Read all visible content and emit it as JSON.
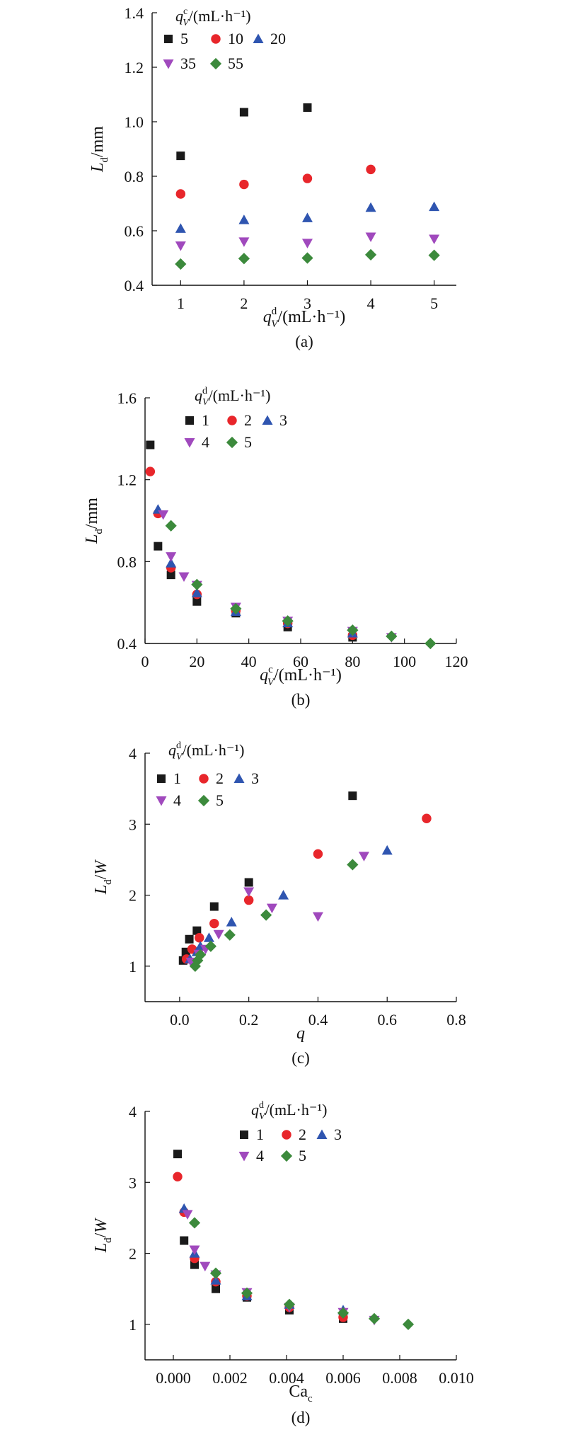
{
  "colors": {
    "black": "#1a1a1a",
    "red": "#e8262b",
    "blue": "#2f55b0",
    "purple": "#a049bd",
    "green": "#3c8a3c"
  },
  "chart_data": [
    {
      "type": "scatter",
      "panel_label": "(a)",
      "xlabel_main": "q",
      "xlabel_sub": "V",
      "xlabel_sup": "d",
      "xlabel_unit": "/(mL·h⁻¹)",
      "ylabel_main": "L",
      "ylabel_sub": "d",
      "ylabel_unit": "/mm",
      "xlim": [
        0.55,
        5.35
      ],
      "ylim": [
        0.4,
        1.4
      ],
      "xticks": [
        1,
        2,
        3,
        4,
        5
      ],
      "yticks": [
        0.4,
        0.6,
        0.8,
        1.0,
        1.2,
        1.4
      ],
      "ytick_decimals": 1,
      "xtick_decimals": 0,
      "legend_title_main": "q",
      "legend_title_sub": "V",
      "legend_title_sup": "c",
      "legend_title_unit": "/(mL·h⁻¹)",
      "series": [
        {
          "name": "5",
          "marker": "square",
          "color": "black",
          "x": [
            1,
            2,
            3
          ],
          "y": [
            0.875,
            1.035,
            1.052
          ]
        },
        {
          "name": "10",
          "marker": "circle",
          "color": "red",
          "x": [
            1,
            2,
            3,
            4
          ],
          "y": [
            0.735,
            0.77,
            0.792,
            0.825
          ]
        },
        {
          "name": "20",
          "marker": "triangle-up",
          "color": "blue",
          "x": [
            1,
            2,
            3,
            4,
            5
          ],
          "y": [
            0.608,
            0.64,
            0.647,
            0.685,
            0.688
          ]
        },
        {
          "name": "35",
          "marker": "triangle-down",
          "color": "purple",
          "x": [
            1,
            2,
            3,
            4,
            5
          ],
          "y": [
            0.545,
            0.56,
            0.555,
            0.578,
            0.57
          ]
        },
        {
          "name": "55",
          "marker": "diamond",
          "color": "green",
          "x": [
            1,
            2,
            3,
            4,
            5
          ],
          "y": [
            0.478,
            0.498,
            0.5,
            0.512,
            0.51
          ]
        }
      ]
    },
    {
      "type": "scatter",
      "panel_label": "(b)",
      "xlabel_main": "q",
      "xlabel_sub": "V",
      "xlabel_sup": "c",
      "xlabel_unit": "/(mL·h⁻¹)",
      "ylabel_main": "L",
      "ylabel_sub": "d",
      "ylabel_unit": "/mm",
      "xlim": [
        0,
        120
      ],
      "ylim": [
        0.4,
        1.6
      ],
      "xticks": [
        0,
        20,
        40,
        60,
        80,
        100,
        120
      ],
      "yticks": [
        0.4,
        0.8,
        1.2,
        1.6
      ],
      "ytick_decimals": 1,
      "xtick_decimals": 0,
      "legend_title_main": "q",
      "legend_title_sub": "V",
      "legend_title_sup": "d",
      "legend_title_unit": "/(mL·h⁻¹)",
      "series": [
        {
          "name": "1",
          "marker": "square",
          "color": "black",
          "x": [
            2,
            5,
            10,
            20,
            35,
            55,
            80
          ],
          "y": [
            1.37,
            0.875,
            0.735,
            0.605,
            0.548,
            0.48,
            0.43
          ]
        },
        {
          "name": "2",
          "marker": "circle",
          "color": "red",
          "x": [
            2,
            5,
            10,
            20,
            35,
            55,
            80
          ],
          "y": [
            1.24,
            1.035,
            0.77,
            0.64,
            0.56,
            0.498,
            0.44
          ]
        },
        {
          "name": "3",
          "marker": "triangle-up",
          "color": "blue",
          "x": [
            5,
            10,
            20,
            35,
            55,
            80
          ],
          "y": [
            1.055,
            0.792,
            0.647,
            0.555,
            0.5,
            0.45
          ]
        },
        {
          "name": "4",
          "marker": "triangle-down",
          "color": "purple",
          "x": [
            7,
            10,
            15,
            20,
            35,
            55,
            80,
            95
          ],
          "y": [
            1.03,
            0.825,
            0.727,
            0.685,
            0.578,
            0.51,
            0.46,
            0.43
          ]
        },
        {
          "name": "5",
          "marker": "diamond",
          "color": "green",
          "x": [
            10,
            20,
            35,
            55,
            80,
            95,
            110
          ],
          "y": [
            0.975,
            0.688,
            0.57,
            0.51,
            0.465,
            0.435,
            0.4
          ]
        }
      ]
    },
    {
      "type": "scatter",
      "panel_label": "(c)",
      "xlabel_main": "q",
      "xlabel_sub": "",
      "xlabel_sup": "",
      "xlabel_unit": "",
      "ylabel_main": "L",
      "ylabel_sub": "d",
      "ylabel_unit": "/W",
      "xlim": [
        -0.1,
        0.8
      ],
      "ylim": [
        0.5,
        4
      ],
      "xticks": [
        0,
        0.2,
        0.4,
        0.6,
        0.8
      ],
      "yticks": [
        1,
        2,
        3,
        4
      ],
      "ytick_decimals": 0,
      "xtick_decimals": 1,
      "legend_title_main": "q",
      "legend_title_sub": "V",
      "legend_title_sup": "d",
      "legend_title_unit": "/(mL·h⁻¹)",
      "series": [
        {
          "name": "1",
          "marker": "square",
          "color": "black",
          "x": [
            0.01,
            0.018,
            0.028,
            0.05,
            0.1,
            0.2,
            0.5
          ],
          "y": [
            1.08,
            1.2,
            1.38,
            1.5,
            1.84,
            2.18,
            3.4
          ]
        },
        {
          "name": "2",
          "marker": "circle",
          "color": "red",
          "x": [
            0.02,
            0.036,
            0.057,
            0.1,
            0.2,
            0.4,
            0.714
          ],
          "y": [
            1.1,
            1.24,
            1.4,
            1.6,
            1.93,
            2.58,
            3.08
          ]
        },
        {
          "name": "3",
          "marker": "triangle-up",
          "color": "blue",
          "x": [
            0.03,
            0.05,
            0.06,
            0.085,
            0.15,
            0.3,
            0.6
          ],
          "y": [
            1.1,
            1.2,
            1.28,
            1.4,
            1.62,
            2.0,
            2.63
          ]
        },
        {
          "name": "4",
          "marker": "triangle-down",
          "color": "purple",
          "x": [
            0.033,
            0.055,
            0.075,
            0.113,
            0.2,
            0.267,
            0.4,
            0.533
          ],
          "y": [
            1.06,
            1.17,
            1.24,
            1.45,
            2.05,
            1.82,
            1.7,
            2.55
          ]
        },
        {
          "name": "5",
          "marker": "diamond",
          "color": "green",
          "x": [
            0.045,
            0.052,
            0.06,
            0.09,
            0.145,
            0.25,
            0.5
          ],
          "y": [
            1.0,
            1.08,
            1.16,
            1.28,
            1.44,
            1.72,
            2.43
          ]
        }
      ]
    },
    {
      "type": "scatter",
      "panel_label": "(d)",
      "xlabel_main": "Ca",
      "xlabel_sub": "c",
      "xlabel_sup": "",
      "xlabel_unit": "",
      "ylabel_main": "L",
      "ylabel_sub": "d",
      "ylabel_unit": "/W",
      "xlim": [
        -0.001,
        0.01
      ],
      "ylim": [
        0.5,
        4
      ],
      "xticks": [
        0,
        0.002,
        0.004,
        0.006,
        0.008,
        0.01
      ],
      "yticks": [
        1,
        2,
        3,
        4
      ],
      "ytick_decimals": 0,
      "xtick_decimals": 3,
      "legend_title_main": "q",
      "legend_title_sub": "V",
      "legend_title_sup": "d",
      "legend_title_unit": "/(mL·h⁻¹)",
      "series": [
        {
          "name": "1",
          "marker": "square",
          "color": "black",
          "x": [
            0.00015,
            0.00038,
            0.00075,
            0.0015,
            0.0026,
            0.0041,
            0.006
          ],
          "y": [
            3.4,
            2.18,
            1.84,
            1.5,
            1.38,
            1.2,
            1.08
          ]
        },
        {
          "name": "2",
          "marker": "circle",
          "color": "red",
          "x": [
            0.00015,
            0.00038,
            0.00075,
            0.0015,
            0.0026,
            0.0041,
            0.006
          ],
          "y": [
            3.08,
            2.58,
            1.93,
            1.6,
            1.4,
            1.24,
            1.1
          ]
        },
        {
          "name": "3",
          "marker": "triangle-up",
          "color": "blue",
          "x": [
            0.00038,
            0.00075,
            0.0015,
            0.0026,
            0.0041,
            0.006
          ],
          "y": [
            2.63,
            2.0,
            1.62,
            1.4,
            1.28,
            1.2
          ]
        },
        {
          "name": "4",
          "marker": "triangle-down",
          "color": "purple",
          "x": [
            0.0005,
            0.00075,
            0.00112,
            0.0015,
            0.0026,
            0.0041,
            0.006,
            0.0071
          ],
          "y": [
            2.55,
            2.05,
            1.82,
            1.7,
            1.45,
            1.24,
            1.17,
            1.06
          ]
        },
        {
          "name": "5",
          "marker": "diamond",
          "color": "green",
          "x": [
            0.00075,
            0.0015,
            0.0026,
            0.0041,
            0.006,
            0.0071,
            0.0083
          ],
          "y": [
            2.43,
            1.72,
            1.44,
            1.28,
            1.16,
            1.08,
            1.0
          ]
        }
      ]
    }
  ]
}
